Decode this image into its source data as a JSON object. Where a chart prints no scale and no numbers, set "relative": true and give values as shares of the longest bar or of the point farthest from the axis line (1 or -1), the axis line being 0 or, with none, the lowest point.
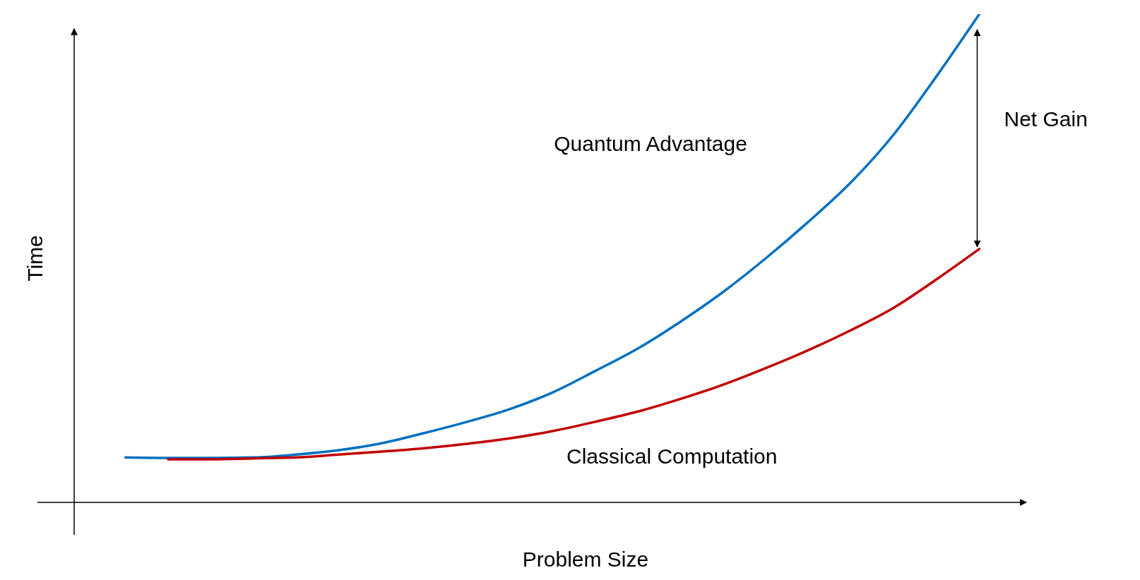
{
  "chart_data": {
    "type": "line",
    "relative": true,
    "xlabel": "Problem Size",
    "ylabel": "Time",
    "categories": [
      null,
      null,
      null,
      null,
      null,
      null,
      null,
      null,
      null,
      null,
      null,
      null,
      null,
      null,
      null,
      null,
      null,
      null,
      null,
      null,
      null
    ],
    "series": [
      {
        "color": "#0070c0",
        "values": [
          0.092,
          0.091,
          0.091,
          0.092,
          0.098,
          0.107,
          0.121,
          0.142,
          0.165,
          0.191,
          0.225,
          0.269,
          0.315,
          0.37,
          0.431,
          0.5,
          0.575,
          0.656,
          0.754,
          0.873,
          1.0
        ]
      },
      {
        "color": "#c00000",
        "values": [
          null,
          0.088,
          0.088,
          0.09,
          0.092,
          0.098,
          0.104,
          0.111,
          0.12,
          0.131,
          0.146,
          0.165,
          0.186,
          0.212,
          0.241,
          0.275,
          0.312,
          0.353,
          0.399,
          0.457,
          0.519
        ]
      }
    ],
    "annotations": [
      "Quantum Advantage",
      "Net Gain",
      "Classical Computation"
    ],
    "grid": false,
    "legend": false,
    "marker": "none",
    "line_style": "solid"
  }
}
